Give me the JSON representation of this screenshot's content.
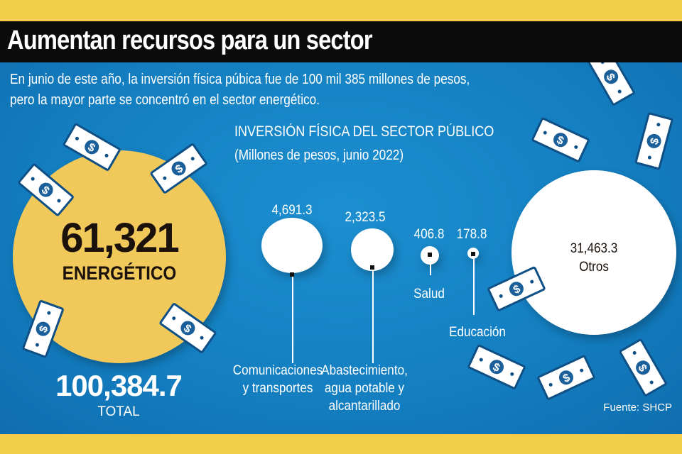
{
  "header": {
    "title": "Aumentan recursos para un sector"
  },
  "intro": {
    "line1": "En junio de este año, la inversión física púbica fue de 100 mil 385 millones de pesos,",
    "line2": "pero la mayor parte se concentró en el sector energético."
  },
  "colors": {
    "band": "#f2cd48",
    "title_bar": "#0b0b0b",
    "panel": "#137ec0",
    "energetico_bubble": "#f0c95a",
    "other_bubbles": "#ffffff"
  },
  "icons": [
    "dollar-bill-icon"
  ],
  "chart_data": {
    "type": "bubble",
    "title": "INVERSIÓN FÍSICA DEL SECTOR PÚBLICO",
    "subtitle": "(Millones de pesos, junio 2022)",
    "unit": "Millones de pesos",
    "total": {
      "value": "100,384.7",
      "label": "TOTAL"
    },
    "items": [
      {
        "name": "ENERGÉTICO",
        "value": 61321,
        "label": "61,321"
      },
      {
        "name": "Comunicaciones y transportes",
        "line1": "Comunicaciones",
        "line2": "y transportes",
        "value": 4691.3,
        "label": "4,691.3"
      },
      {
        "name": "Abastecimiento, agua potable y alcantarillado",
        "line1": "Abastecimiento,",
        "line2": "agua potable y",
        "line3": "alcantarillado",
        "value": 2323.5,
        "label": "2,323.5"
      },
      {
        "name": "Salud",
        "value": 406.8,
        "label": "406.8"
      },
      {
        "name": "Educación",
        "value": 178.8,
        "label": "178.8"
      },
      {
        "name": "Otros",
        "value": 31463.3,
        "label": "31,463.3"
      }
    ]
  },
  "source": "Fuente: SHCP"
}
